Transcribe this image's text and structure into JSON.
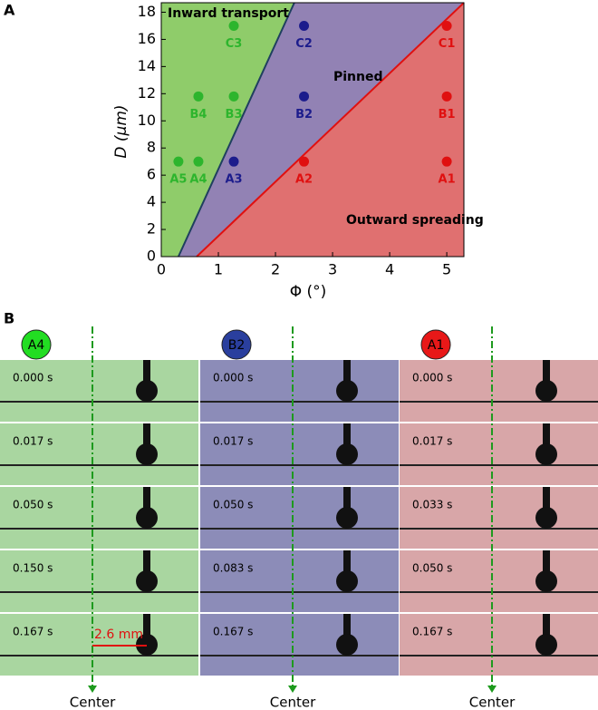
{
  "chart_data": {
    "type": "scatter",
    "panel_label": "A",
    "x_label": "Φ (°)",
    "y_label": "D (μm)",
    "xlim": [
      0,
      5.3
    ],
    "ylim": [
      0,
      18.7
    ],
    "xticks": [
      0,
      1,
      2,
      3,
      4,
      5
    ],
    "yticks": [
      0,
      2,
      4,
      6,
      8,
      10,
      12,
      14,
      16,
      18
    ],
    "regions": {
      "colors": [
        "#8fcc6a",
        "#9282b4",
        "#e07070"
      ]
    },
    "boundaries": [
      {
        "x": [
          0.3,
          2.33
        ],
        "y": [
          0,
          18.7
        ],
        "color": "#1f3f5f"
      },
      {
        "x": [
          0.62,
          5.3
        ],
        "y": [
          0,
          18.7
        ],
        "color": "#e01010"
      }
    ],
    "annotations": [
      "Inward transport",
      "Pinned",
      "Outward  spreading"
    ],
    "series": [
      {
        "color": "#2db52d",
        "x": [
          0.3,
          0.65,
          0.65,
          1.27,
          1.27
        ],
        "values": [
          7,
          7,
          11.8,
          11.8,
          17
        ],
        "labels": [
          "A5",
          "A4",
          "B4",
          "B3",
          "C3"
        ]
      },
      {
        "color": "#1c1c8c",
        "x": [
          1.27,
          2.5,
          2.5
        ],
        "values": [
          7,
          11.8,
          17
        ],
        "labels": [
          "A3",
          "B2",
          "C2"
        ]
      },
      {
        "color": "#e01010",
        "x": [
          2.5,
          5,
          5,
          5
        ],
        "values": [
          7,
          7,
          11.8,
          17
        ],
        "labels": [
          "A2",
          "A1",
          "B1",
          "C1"
        ]
      }
    ]
  },
  "panel_b": {
    "panel_label": "B",
    "scale_bar": "2.6 mm",
    "center_label": "Center",
    "columns": [
      {
        "label": "A4",
        "color": "#22dd22",
        "background": "#a9d6a0",
        "frames": [
          "0.000 s",
          "0.017 s",
          "0.050 s",
          "0.150 s",
          "0.167 s"
        ]
      },
      {
        "label": "B2",
        "color": "#2a3f9e",
        "background": "#8c8cb8",
        "frames": [
          "0.000 s",
          "0.017 s",
          "0.050 s",
          "0.083 s",
          "0.167 s"
        ]
      },
      {
        "label": "A1",
        "color": "#e81818",
        "background": "#d8a6a8",
        "frames": [
          "0.000 s",
          "0.017 s",
          "0.033 s",
          "0.050 s",
          "0.167 s"
        ]
      }
    ]
  }
}
